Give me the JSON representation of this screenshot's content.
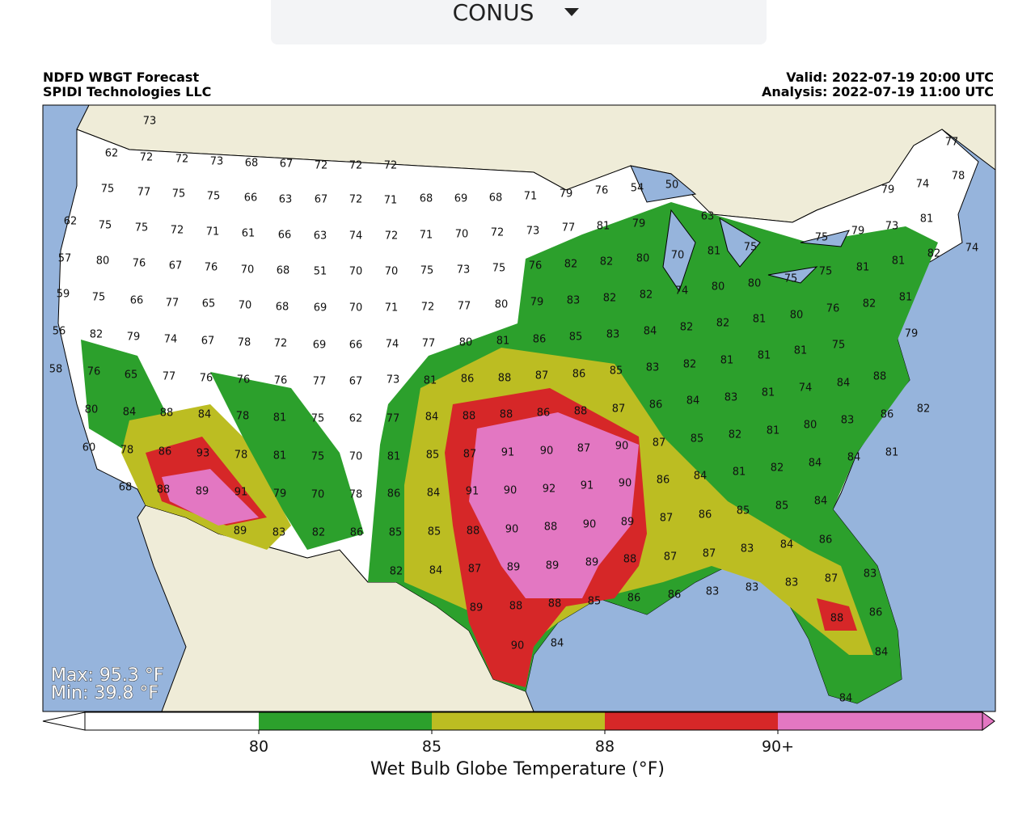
{
  "header": {
    "selector": "CONUS"
  },
  "map": {
    "title_left": [
      "NDFD WBGT Forecast",
      "SPIDI Technologies LLC"
    ],
    "valid": "Valid: 2022-07-19 20:00 UTC",
    "analysis": "Analysis: 2022-07-19 11:00 UTC",
    "max": "Max: 95.3 °F",
    "min": "Min: 39.8 °F",
    "station_values": [
      73,
      62,
      72,
      72,
      73,
      68,
      67,
      72,
      72,
      72,
      75,
      77,
      75,
      75,
      66,
      63,
      67,
      72,
      71,
      68,
      69,
      68,
      71,
      79,
      76,
      54,
      50,
      79,
      74,
      77,
      78,
      62,
      75,
      75,
      72,
      71,
      61,
      66,
      63,
      74,
      72,
      71,
      70,
      72,
      73,
      77,
      81,
      79,
      63,
      79,
      75,
      73,
      81,
      74,
      57,
      80,
      76,
      67,
      76,
      70,
      68,
      51,
      70,
      70,
      75,
      73,
      75,
      76,
      82,
      82,
      80,
      70,
      81,
      75,
      75,
      81,
      81,
      82,
      59,
      75,
      66,
      77,
      65,
      70,
      68,
      69,
      70,
      71,
      72,
      77,
      80,
      79,
      83,
      82,
      82,
      74,
      80,
      80,
      75,
      76,
      82,
      81,
      56,
      82,
      79,
      74,
      67,
      78,
      72,
      69,
      66,
      74,
      77,
      80,
      81,
      86,
      85,
      83,
      84,
      82,
      82,
      81,
      80,
      79,
      58,
      76,
      65,
      77,
      76,
      76,
      76,
      77,
      67,
      73,
      81,
      86,
      88,
      87,
      86,
      85,
      83,
      82,
      81,
      81,
      81,
      75,
      80,
      84,
      88,
      84,
      78,
      81,
      75,
      62,
      77,
      84,
      88,
      88,
      86,
      88,
      87,
      86,
      84,
      83,
      81,
      74,
      84,
      88,
      60,
      78,
      86,
      93,
      78,
      81,
      75,
      70,
      81,
      85,
      87,
      91,
      90,
      87,
      90,
      87,
      85,
      82,
      81,
      80,
      83,
      86,
      82,
      68,
      88,
      89,
      91,
      79,
      70,
      78,
      86,
      84,
      91,
      90,
      92,
      91,
      90,
      86,
      84,
      81,
      82,
      84,
      84,
      81,
      89,
      83,
      82,
      86,
      85,
      85,
      88,
      90,
      88,
      90,
      89,
      87,
      86,
      85,
      85,
      84,
      82,
      84,
      87,
      89,
      89,
      89,
      88,
      87,
      87,
      83,
      84,
      86,
      89,
      88,
      88,
      85,
      86,
      86,
      83,
      83,
      83,
      87,
      83,
      90,
      84,
      88,
      86,
      84,
      84
    ],
    "colorbar": {
      "label": "Wet Bulb Globe Temperature (°F)",
      "ticks": [
        80,
        85,
        88,
        {
          "value": 90,
          "label": "90+"
        }
      ],
      "colors": [
        "#ffffff",
        "#2ca02c",
        "#bcbd22",
        "#d62728",
        "#e377c2"
      ]
    }
  }
}
